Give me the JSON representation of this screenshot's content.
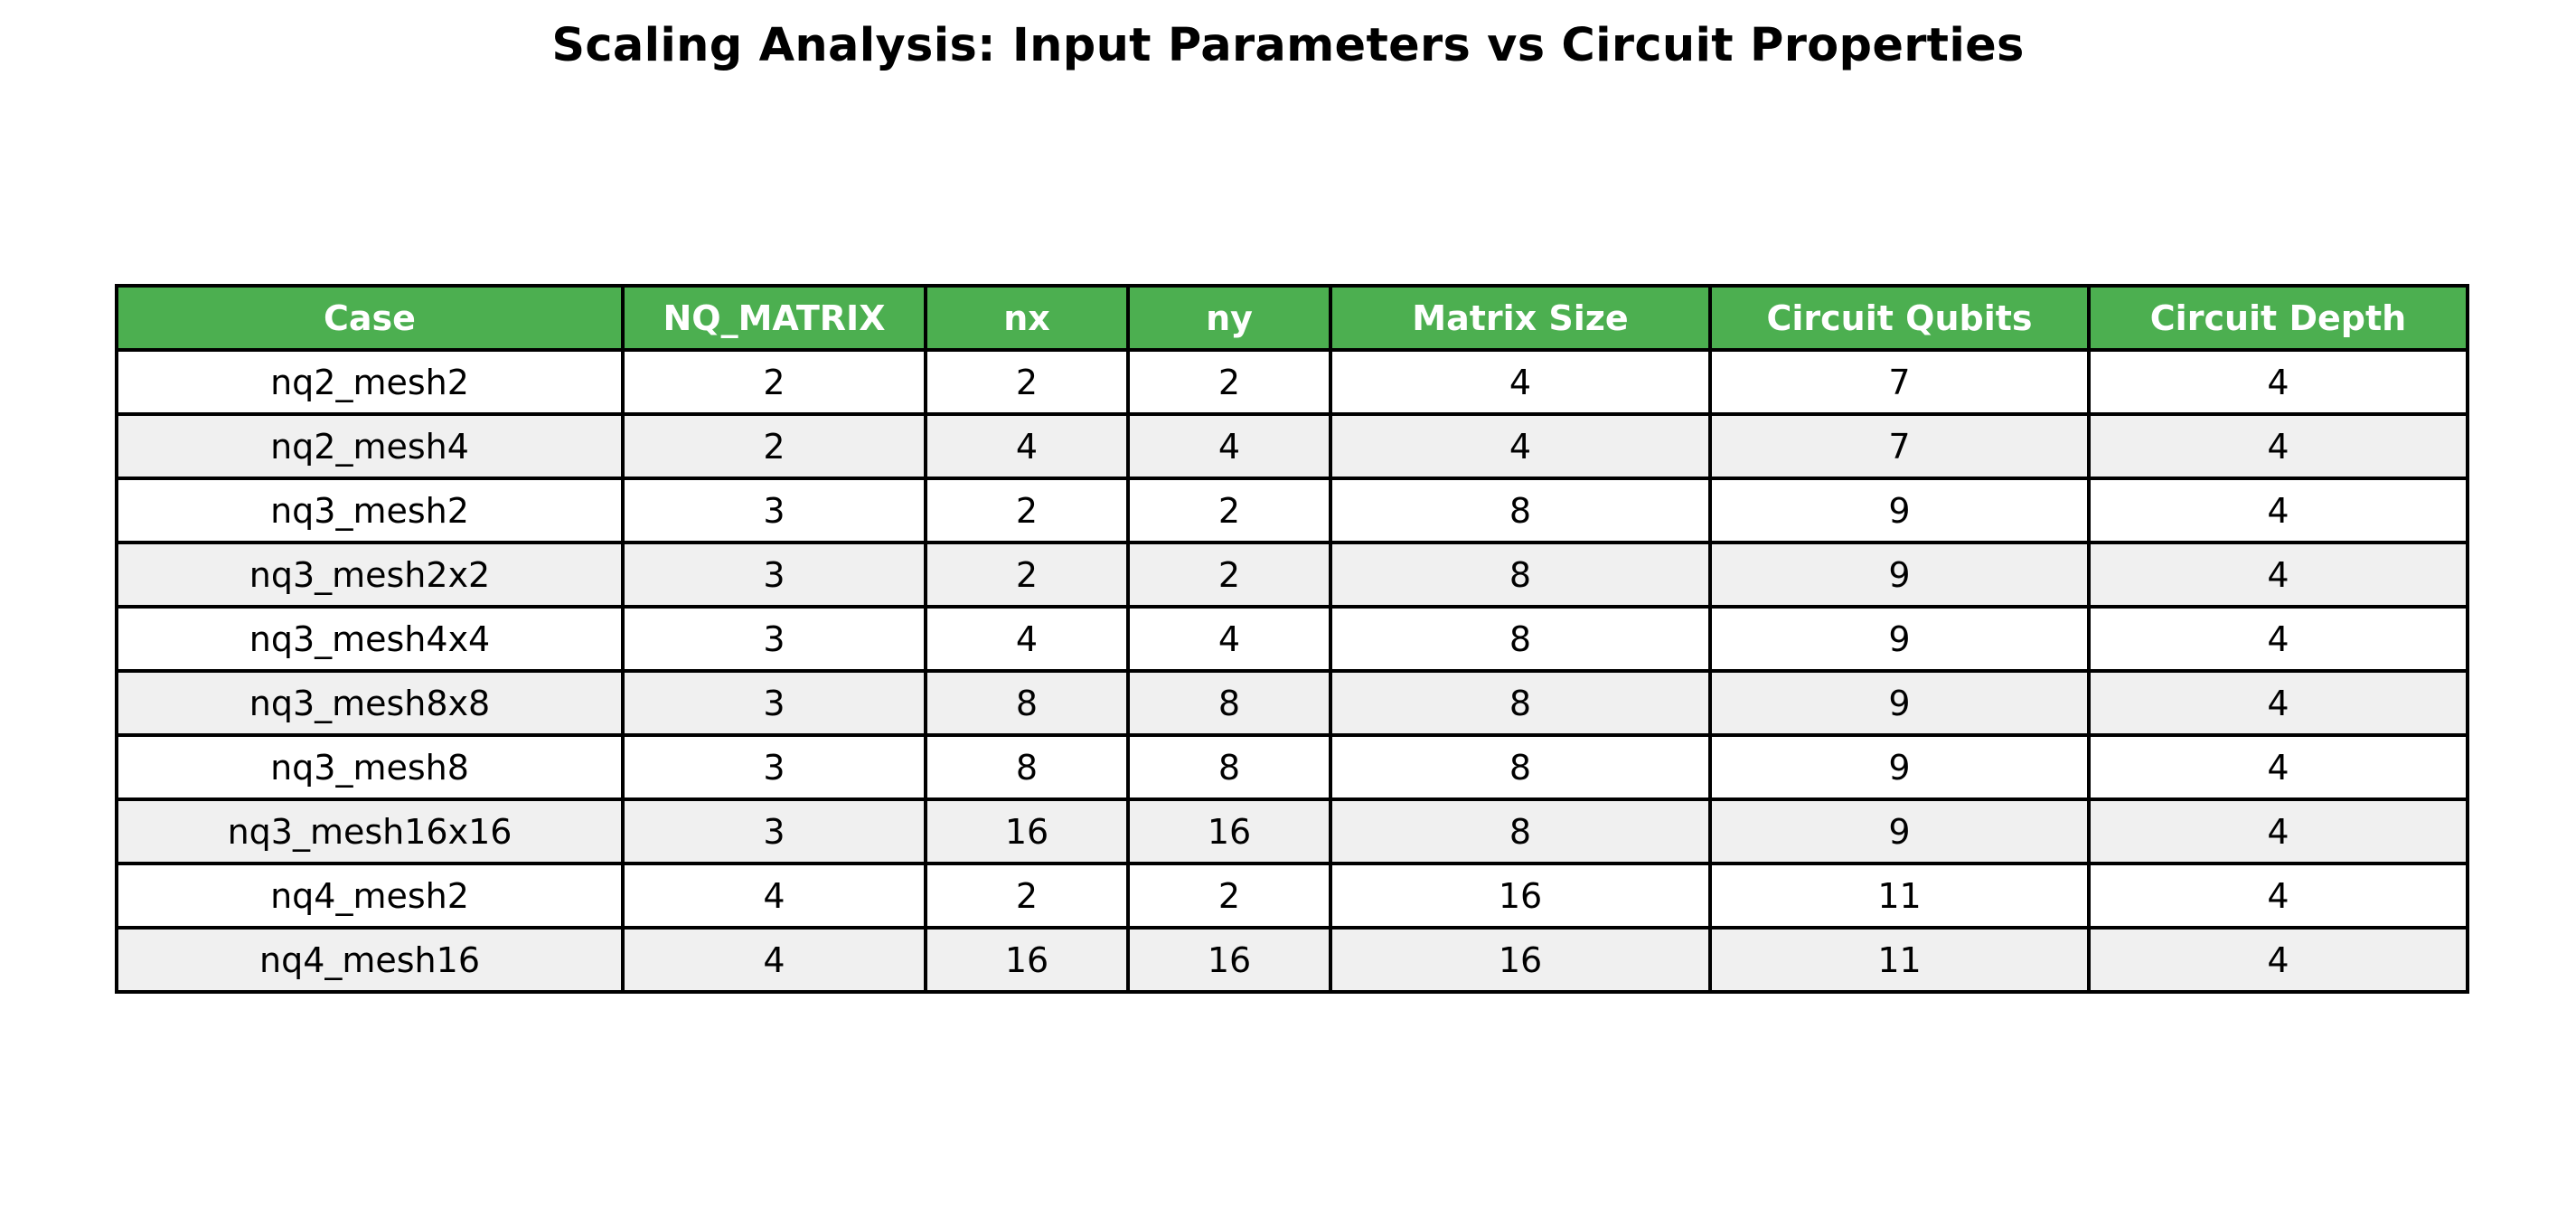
{
  "colors": {
    "header_bg": "#4caf50",
    "header_text": "#ffffff",
    "row_odd_bg": "#ffffff",
    "row_even_bg": "#f0f0f0",
    "border": "#000000"
  },
  "chart_data": {
    "type": "table",
    "title": "Scaling Analysis: Input Parameters vs Circuit Properties",
    "columns": [
      "Case",
      "NQ_MATRIX",
      "nx",
      "ny",
      "Matrix Size",
      "Circuit Qubits",
      "Circuit Depth"
    ],
    "rows": [
      [
        "nq2_mesh2",
        "2",
        "2",
        "2",
        "4",
        "7",
        "4"
      ],
      [
        "nq2_mesh4",
        "2",
        "4",
        "4",
        "4",
        "7",
        "4"
      ],
      [
        "nq3_mesh2",
        "3",
        "2",
        "2",
        "8",
        "9",
        "4"
      ],
      [
        "nq3_mesh2x2",
        "3",
        "2",
        "2",
        "8",
        "9",
        "4"
      ],
      [
        "nq3_mesh4x4",
        "3",
        "4",
        "4",
        "8",
        "9",
        "4"
      ],
      [
        "nq3_mesh8x8",
        "3",
        "8",
        "8",
        "8",
        "9",
        "4"
      ],
      [
        "nq3_mesh8",
        "3",
        "8",
        "8",
        "8",
        "9",
        "4"
      ],
      [
        "nq3_mesh16x16",
        "3",
        "16",
        "16",
        "8",
        "9",
        "4"
      ],
      [
        "nq4_mesh2",
        "4",
        "2",
        "2",
        "16",
        "11",
        "4"
      ],
      [
        "nq4_mesh16",
        "4",
        "16",
        "16",
        "16",
        "11",
        "4"
      ]
    ]
  }
}
